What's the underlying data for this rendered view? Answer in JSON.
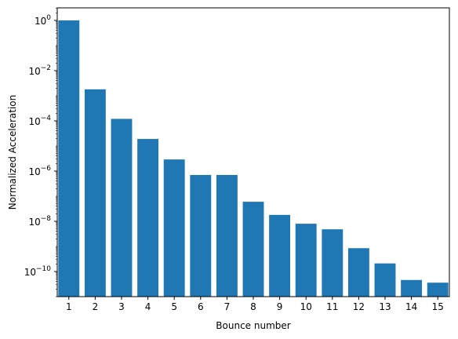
{
  "chart_data": {
    "type": "bar",
    "title": "",
    "xlabel": "Bounce number",
    "ylabel": "Normalized Acceleration",
    "yscale": "log",
    "ylim": [
      1e-11,
      3.16
    ],
    "grid": false,
    "legend": "none",
    "bar_color": "#1f77b4",
    "categories": [
      "1",
      "2",
      "3",
      "4",
      "5",
      "6",
      "7",
      "8",
      "9",
      "10",
      "11",
      "12",
      "13",
      "14",
      "15"
    ],
    "values": [
      1.0,
      0.0018,
      0.00012,
      1.9e-05,
      2.9e-06,
      7e-07,
      7e-07,
      6e-08,
      1.8e-08,
      8e-09,
      4.8e-09,
      8.5e-10,
      2.1e-10,
      4.6e-11,
      3.6e-11
    ],
    "yticks": [
      {
        "exp": "0",
        "value": 1
      },
      {
        "exp": "−2",
        "value": 0.01
      },
      {
        "exp": "−4",
        "value": 0.0001
      },
      {
        "exp": "−6",
        "value": 1e-06
      },
      {
        "exp": "−8",
        "value": 1e-08
      },
      {
        "exp": "−10",
        "value": 1e-10
      }
    ]
  }
}
